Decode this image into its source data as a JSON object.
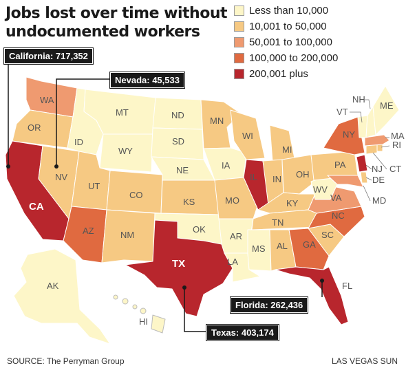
{
  "title": {
    "line1": "Jobs lost over time without",
    "line2": "undocumented workers"
  },
  "legend": {
    "items": [
      {
        "label": "Less than 10,000",
        "color": "#fdf6c8"
      },
      {
        "label": "10,001 to 50,000",
        "color": "#f6c983"
      },
      {
        "label": "50,001 to 100,000",
        "color": "#ef9a70"
      },
      {
        "label": "100,000 to 200,000",
        "color": "#e06a40"
      },
      {
        "label": "200,001 plus",
        "color": "#b8262d"
      }
    ]
  },
  "states": {
    "WA": "WA",
    "OR": "OR",
    "CA": "CA",
    "NV": "NV",
    "ID": "ID",
    "MT": "MT",
    "WY": "WY",
    "UT": "UT",
    "AZ": "AZ",
    "CO": "CO",
    "NM": "NM",
    "ND": "ND",
    "SD": "SD",
    "NE": "NE",
    "KS": "KS",
    "OK": "OK",
    "TX": "TX",
    "MN": "MN",
    "IA": "IA",
    "MO": "MO",
    "AR": "AR",
    "LA": "LA",
    "WI": "WI",
    "IL": "IL",
    "MI": "MI",
    "IN": "IN",
    "OH": "OH",
    "KY": "KY",
    "TN": "TN",
    "MS": "MS",
    "AL": "AL",
    "GA": "GA",
    "FL": "FL",
    "SC": "SC",
    "NC": "NC",
    "VA": "VA",
    "WV": "WV",
    "PA": "PA",
    "NY": "NY",
    "VT": "VT",
    "NH": "NH",
    "ME": "ME",
    "MA": "MA",
    "RI": "RI",
    "CT": "CT",
    "NJ": "NJ",
    "DE": "DE",
    "MD": "MD",
    "AK": "AK",
    "HI": "HI"
  },
  "callouts": {
    "california": "California: 717,352",
    "nevada": "Nevada: 45,533",
    "florida": "Florida: 262,436",
    "texas": "Texas: 403,174"
  },
  "footer": {
    "source": "SOURCE: The Perryman Group",
    "credit": "LAS VEGAS SUN"
  }
}
